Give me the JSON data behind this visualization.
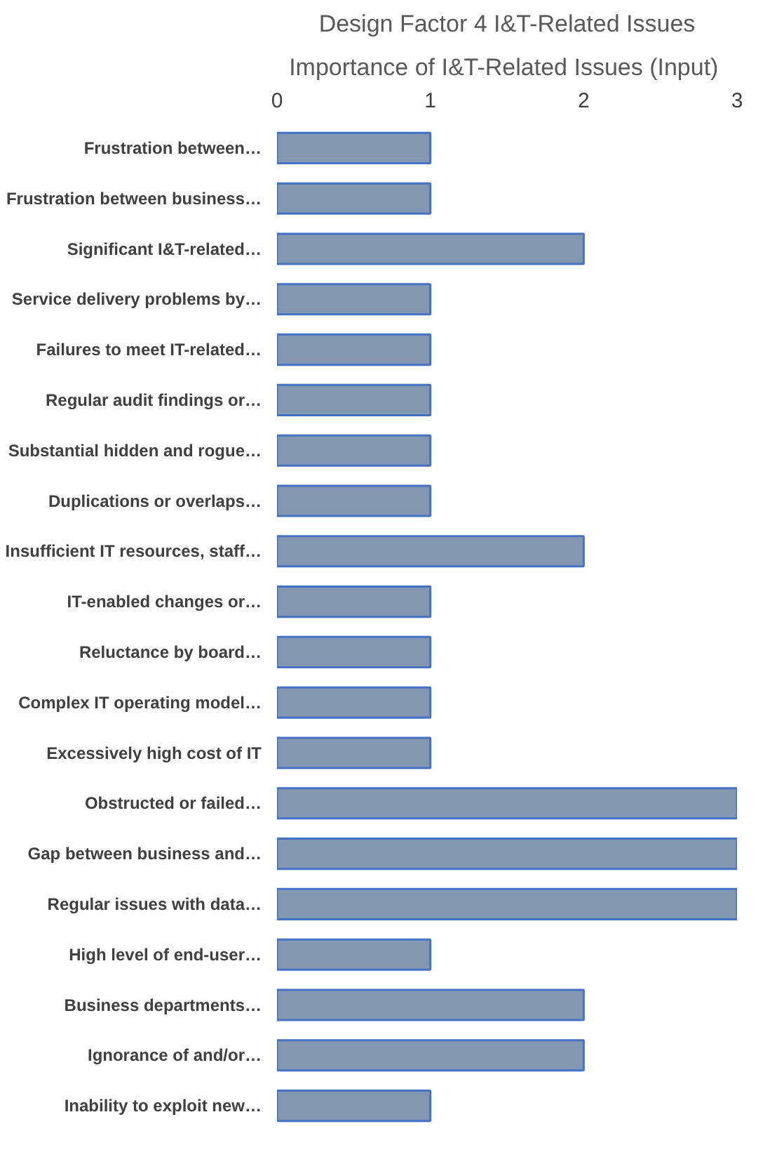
{
  "chart_data": {
    "type": "bar",
    "orientation": "horizontal",
    "title": "Design Factor 4 I&T-Related Issues",
    "subtitle": "Importance of I&T-Related  Issues (Input)",
    "categories": [
      "Frustration between…",
      "Frustration between business…",
      "Significant I&T-related…",
      "Service delivery problems by…",
      "Failures to meet IT-related…",
      "Regular audit findings or…",
      "Substantial hidden and rogue…",
      "Duplications or overlaps…",
      "Insufficient IT resources, staff…",
      "IT-enabled changes or…",
      "Reluctance by board…",
      "Complex IT operating model…",
      "Excessively high cost of IT",
      "Obstructed or failed…",
      "Gap between business and…",
      "Regular issues with data…",
      "High level of end-user…",
      "Business departments…",
      "Ignorance of and/or…",
      "Inability to exploit new…"
    ],
    "values": [
      1,
      1,
      2,
      1,
      1,
      1,
      1,
      1,
      2,
      1,
      1,
      1,
      1,
      3,
      3,
      3,
      1,
      2,
      2,
      1
    ],
    "color": "#8497b0",
    "xlim": [
      0,
      3
    ],
    "xticks": [
      0,
      1,
      2,
      3
    ],
    "grid": false
  }
}
